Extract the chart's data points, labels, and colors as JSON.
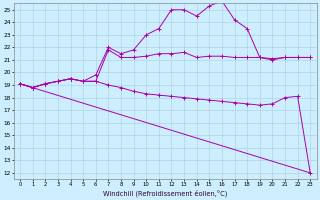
{
  "xlabel": "Windchill (Refroidissement éolien,°C)",
  "bg_color": "#cceeff",
  "grid_color": "#aaccdd",
  "line_color": "#aa00aa",
  "xlim": [
    -0.5,
    23.5
  ],
  "ylim": [
    11.5,
    25.5
  ],
  "xticks": [
    0,
    1,
    2,
    3,
    4,
    5,
    6,
    7,
    8,
    9,
    10,
    11,
    12,
    13,
    14,
    15,
    16,
    17,
    18,
    19,
    20,
    21,
    22,
    23
  ],
  "yticks": [
    12,
    13,
    14,
    15,
    16,
    17,
    18,
    19,
    20,
    21,
    22,
    23,
    24,
    25
  ],
  "line1_x": [
    0,
    1,
    2,
    3,
    4,
    5,
    6,
    7,
    8,
    9,
    10,
    11,
    12,
    13,
    14,
    15,
    16,
    17,
    18,
    19,
    20,
    21,
    22,
    23
  ],
  "line1_y": [
    19.1,
    18.8,
    19.1,
    19.3,
    19.5,
    19.3,
    19.3,
    21.8,
    21.2,
    21.2,
    21.3,
    21.5,
    21.5,
    21.6,
    21.2,
    21.3,
    21.3,
    21.2,
    21.2,
    21.2,
    21.1,
    21.2,
    21.2,
    21.2
  ],
  "line2_x": [
    0,
    1,
    2,
    3,
    4,
    5,
    6,
    7,
    8,
    9,
    10,
    11,
    12,
    13,
    14,
    15,
    16,
    17,
    18,
    19,
    20,
    21,
    22,
    23
  ],
  "line2_y": [
    19.1,
    18.8,
    19.1,
    19.3,
    19.5,
    19.3,
    19.8,
    22.0,
    21.5,
    21.8,
    23.0,
    23.5,
    25.0,
    25.0,
    24.5,
    25.3,
    25.7,
    24.2,
    23.5,
    21.2,
    21.0,
    21.2,
    21.2,
    21.2
  ],
  "line3_x": [
    0,
    1,
    2,
    3,
    4,
    5,
    6,
    7,
    8,
    9,
    10,
    11,
    12,
    13,
    14,
    15,
    16,
    17,
    18,
    19,
    20,
    21,
    22,
    23
  ],
  "line3_y": [
    19.1,
    18.8,
    19.1,
    19.3,
    19.5,
    19.3,
    19.3,
    19.0,
    18.8,
    18.5,
    18.3,
    18.2,
    18.1,
    18.0,
    17.9,
    17.8,
    17.7,
    17.6,
    17.5,
    17.4,
    17.5,
    18.0,
    18.1,
    12.0
  ],
  "line4_x": [
    0,
    23
  ],
  "line4_y": [
    19.1,
    12.0
  ]
}
